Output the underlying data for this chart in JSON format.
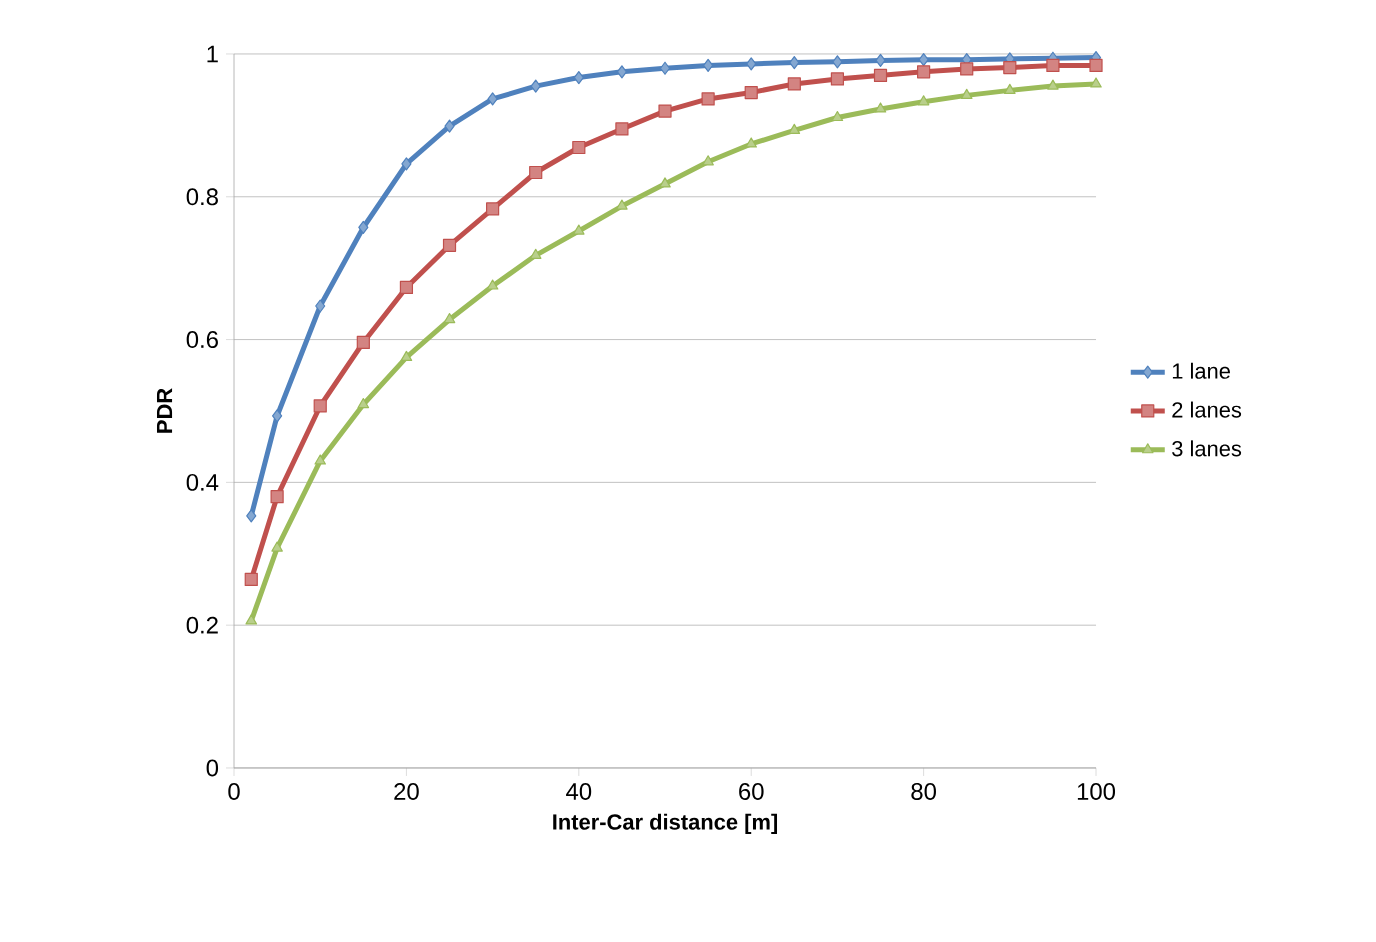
{
  "chart_data": {
    "type": "line",
    "xlabel": "Inter-Car distance [m]",
    "ylabel": "PDR",
    "x": [
      2,
      5,
      10,
      15,
      20,
      25,
      30,
      35,
      40,
      45,
      50,
      55,
      60,
      65,
      70,
      75,
      80,
      85,
      90,
      95,
      100
    ],
    "series": [
      {
        "name": "1 lane",
        "color": "#4f81bd",
        "marker": "diamond",
        "values": [
          0.353,
          0.493,
          0.647,
          0.757,
          0.846,
          0.899,
          0.937,
          0.955,
          0.967,
          0.975,
          0.98,
          0.984,
          0.986,
          0.988,
          0.989,
          0.991,
          0.992,
          0.992,
          0.993,
          0.994,
          0.995
        ]
      },
      {
        "name": "2 lanes",
        "color": "#c0504d",
        "marker": "square",
        "values": [
          0.264,
          0.38,
          0.507,
          0.596,
          0.673,
          0.732,
          0.783,
          0.834,
          0.869,
          0.895,
          0.92,
          0.937,
          0.946,
          0.958,
          0.965,
          0.97,
          0.975,
          0.979,
          0.981,
          0.984,
          0.984
        ]
      },
      {
        "name": "3 lanes",
        "color": "#9bbb59",
        "marker": "triangle",
        "values": [
          0.206,
          0.308,
          0.43,
          0.509,
          0.575,
          0.628,
          0.675,
          0.718,
          0.752,
          0.787,
          0.818,
          0.849,
          0.874,
          0.893,
          0.911,
          0.923,
          0.933,
          0.942,
          0.949,
          0.955,
          0.958
        ]
      }
    ],
    "xlim": [
      0,
      100
    ],
    "xticks": [
      0,
      20,
      40,
      60,
      80,
      100
    ],
    "ylim": [
      0,
      1
    ],
    "yticks": [
      0,
      0.2,
      0.4,
      0.6,
      0.8,
      1
    ],
    "grid": "y",
    "legend": "right",
    "line_style": "solid"
  }
}
